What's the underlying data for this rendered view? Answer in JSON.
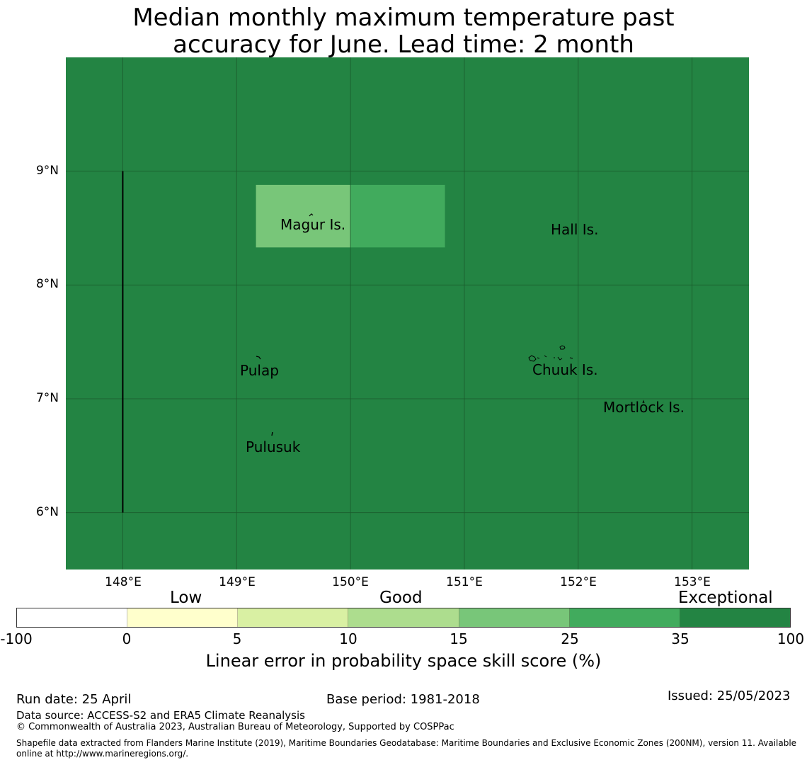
{
  "title_line1": "Median monthly maximum temperature past",
  "title_line2": "accuracy for June. Lead time: 2 month",
  "map": {
    "background_color": "#238443",
    "lon_range": [
      147.5,
      153.5
    ],
    "lat_range": [
      5.5,
      10.0
    ],
    "lat_ticks": [
      "9°N",
      "8°N",
      "7°N",
      "6°N"
    ],
    "lon_ticks": [
      "148°E",
      "149°E",
      "150°E",
      "151°E",
      "152°E",
      "153°E"
    ],
    "cells": [
      {
        "lon_min": 149.17,
        "lon_max": 150.0,
        "lat_min": 8.33,
        "lat_max": 8.88,
        "color": "#78c679"
      },
      {
        "lon_min": 150.0,
        "lon_max": 150.83,
        "lat_min": 8.33,
        "lat_max": 8.88,
        "color": "#41ab5d"
      }
    ],
    "boundary_line": {
      "lon": 148.0,
      "lat_min": 6.0,
      "lat_max": 9.0
    },
    "places": [
      {
        "name": "Magur Is.",
        "lon": 149.3,
        "lat": 8.52
      },
      {
        "name": "Hall Is.",
        "lon": 151.75,
        "lat": 8.48
      },
      {
        "name": "Pulap",
        "lon": 149.03,
        "lat": 7.22
      },
      {
        "name": "Chuuk Is.",
        "lon": 151.6,
        "lat": 7.23
      },
      {
        "name": "Mortlock Is.",
        "lon": 152.22,
        "lat": 6.9
      },
      {
        "name": "Pulusuk",
        "lon": 149.08,
        "lat": 6.56
      }
    ]
  },
  "colorbar": {
    "category_labels": [
      "Low",
      "Good",
      "Exceptional"
    ],
    "tick_labels": [
      "-100",
      "0",
      "5",
      "10",
      "15",
      "25",
      "35",
      "100"
    ],
    "colors": [
      "#ffffff",
      "#ffffcc",
      "#d9f0a3",
      "#addd8e",
      "#78c679",
      "#41ab5d",
      "#238443"
    ],
    "title": "Linear error in probability space skill score (%)"
  },
  "footer": {
    "run_date": "Run date: 25 April",
    "base_period": "Base period: 1981-2018",
    "issued": "Issued: 25/05/2023",
    "data_source": "Data source: ACCESS-S2 and ERA5 Climate Reanalysis",
    "copyright": "© Commonwealth of Australia 2023, Australian Bureau of Meteorology, Supported by COSPPac",
    "shapefile_line1": "Shapefile data extracted from Flanders Marine Institute (2019), Maritime Boundaries Geodatabase: Maritime Boundaries and Exclusive Economic Zones (200NM), version 11. Available",
    "shapefile_line2": "online at http://www.marineregions.org/."
  }
}
